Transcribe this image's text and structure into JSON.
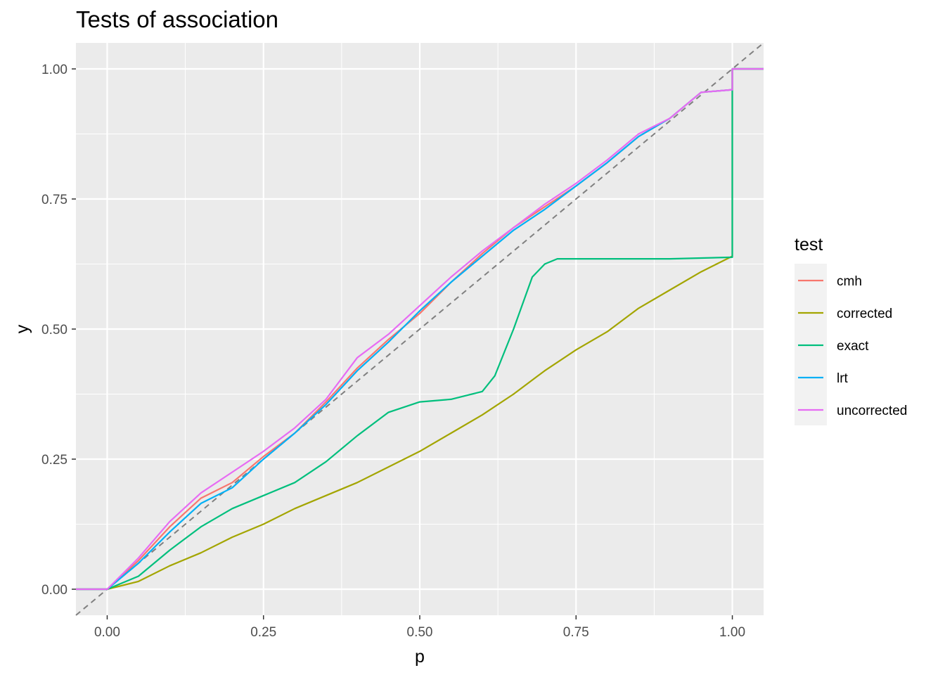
{
  "chart_data": {
    "type": "line",
    "title": "Tests of association",
    "xlabel": "p",
    "ylabel": "y",
    "xlim": [
      -0.05,
      1.05
    ],
    "ylim": [
      -0.05,
      1.05
    ],
    "x_ticks": [
      "0.00",
      "0.25",
      "0.50",
      "0.75",
      "1.00"
    ],
    "y_ticks": [
      "0.00",
      "0.25",
      "0.50",
      "0.75",
      "1.00"
    ],
    "grid": true,
    "legend": {
      "title": "test",
      "position": "right"
    },
    "reference_line": {
      "style": "dashed",
      "color": "#808080",
      "x": [
        -0.05,
        1.05
      ],
      "y": [
        -0.05,
        1.05
      ]
    },
    "series": [
      {
        "name": "cmh",
        "color": "#F8766D",
        "x": [
          -0.05,
          0.0,
          0.05,
          0.1,
          0.15,
          0.2,
          0.25,
          0.3,
          0.35,
          0.4,
          0.45,
          0.5,
          0.55,
          0.6,
          0.65,
          0.7,
          0.75,
          0.8,
          0.85,
          0.9,
          0.95,
          1.0,
          1.0,
          1.05
        ],
        "y": [
          0.0,
          0.0,
          0.055,
          0.12,
          0.175,
          0.205,
          0.255,
          0.3,
          0.36,
          0.425,
          0.48,
          0.53,
          0.59,
          0.645,
          0.695,
          0.735,
          0.775,
          0.82,
          0.87,
          0.905,
          0.955,
          0.96,
          1.0,
          1.0
        ]
      },
      {
        "name": "corrected",
        "color": "#A3A500",
        "x": [
          -0.05,
          0.0,
          0.05,
          0.1,
          0.15,
          0.2,
          0.25,
          0.3,
          0.35,
          0.4,
          0.45,
          0.5,
          0.55,
          0.6,
          0.65,
          0.7,
          0.75,
          0.8,
          0.85,
          0.9,
          0.95,
          1.0,
          1.0,
          1.05
        ],
        "y": [
          0.0,
          0.0,
          0.015,
          0.045,
          0.07,
          0.1,
          0.125,
          0.155,
          0.18,
          0.205,
          0.235,
          0.265,
          0.3,
          0.335,
          0.375,
          0.42,
          0.46,
          0.495,
          0.54,
          0.575,
          0.61,
          0.64,
          1.0,
          1.0
        ]
      },
      {
        "name": "exact",
        "color": "#00BF7D",
        "x": [
          -0.05,
          0.0,
          0.05,
          0.1,
          0.15,
          0.2,
          0.25,
          0.3,
          0.35,
          0.4,
          0.45,
          0.5,
          0.55,
          0.6,
          0.62,
          0.65,
          0.68,
          0.7,
          0.72,
          0.75,
          0.8,
          0.9,
          1.0,
          1.0,
          1.05
        ],
        "y": [
          0.0,
          0.0,
          0.025,
          0.075,
          0.12,
          0.155,
          0.18,
          0.205,
          0.245,
          0.295,
          0.34,
          0.36,
          0.365,
          0.38,
          0.41,
          0.5,
          0.6,
          0.625,
          0.635,
          0.635,
          0.635,
          0.635,
          0.638,
          1.0,
          1.0
        ]
      },
      {
        "name": "lrt",
        "color": "#00B0F6",
        "x": [
          -0.05,
          0.0,
          0.05,
          0.1,
          0.15,
          0.2,
          0.25,
          0.3,
          0.35,
          0.4,
          0.45,
          0.5,
          0.55,
          0.6,
          0.65,
          0.7,
          0.75,
          0.8,
          0.85,
          0.9,
          0.95,
          1.0,
          1.0,
          1.05
        ],
        "y": [
          0.0,
          0.0,
          0.05,
          0.11,
          0.165,
          0.195,
          0.25,
          0.3,
          0.355,
          0.42,
          0.475,
          0.535,
          0.59,
          0.64,
          0.69,
          0.73,
          0.775,
          0.82,
          0.87,
          0.905,
          0.955,
          0.96,
          1.0,
          1.0
        ]
      },
      {
        "name": "uncorrected",
        "color": "#E76BF3",
        "x": [
          -0.05,
          0.0,
          0.05,
          0.1,
          0.15,
          0.2,
          0.25,
          0.3,
          0.35,
          0.4,
          0.45,
          0.5,
          0.55,
          0.6,
          0.65,
          0.7,
          0.75,
          0.8,
          0.85,
          0.9,
          0.95,
          1.0,
          1.0,
          1.05
        ],
        "y": [
          0.0,
          0.0,
          0.06,
          0.13,
          0.185,
          0.225,
          0.265,
          0.31,
          0.365,
          0.445,
          0.49,
          0.545,
          0.6,
          0.65,
          0.695,
          0.74,
          0.78,
          0.825,
          0.875,
          0.905,
          0.955,
          0.96,
          1.0,
          1.0
        ]
      }
    ]
  }
}
